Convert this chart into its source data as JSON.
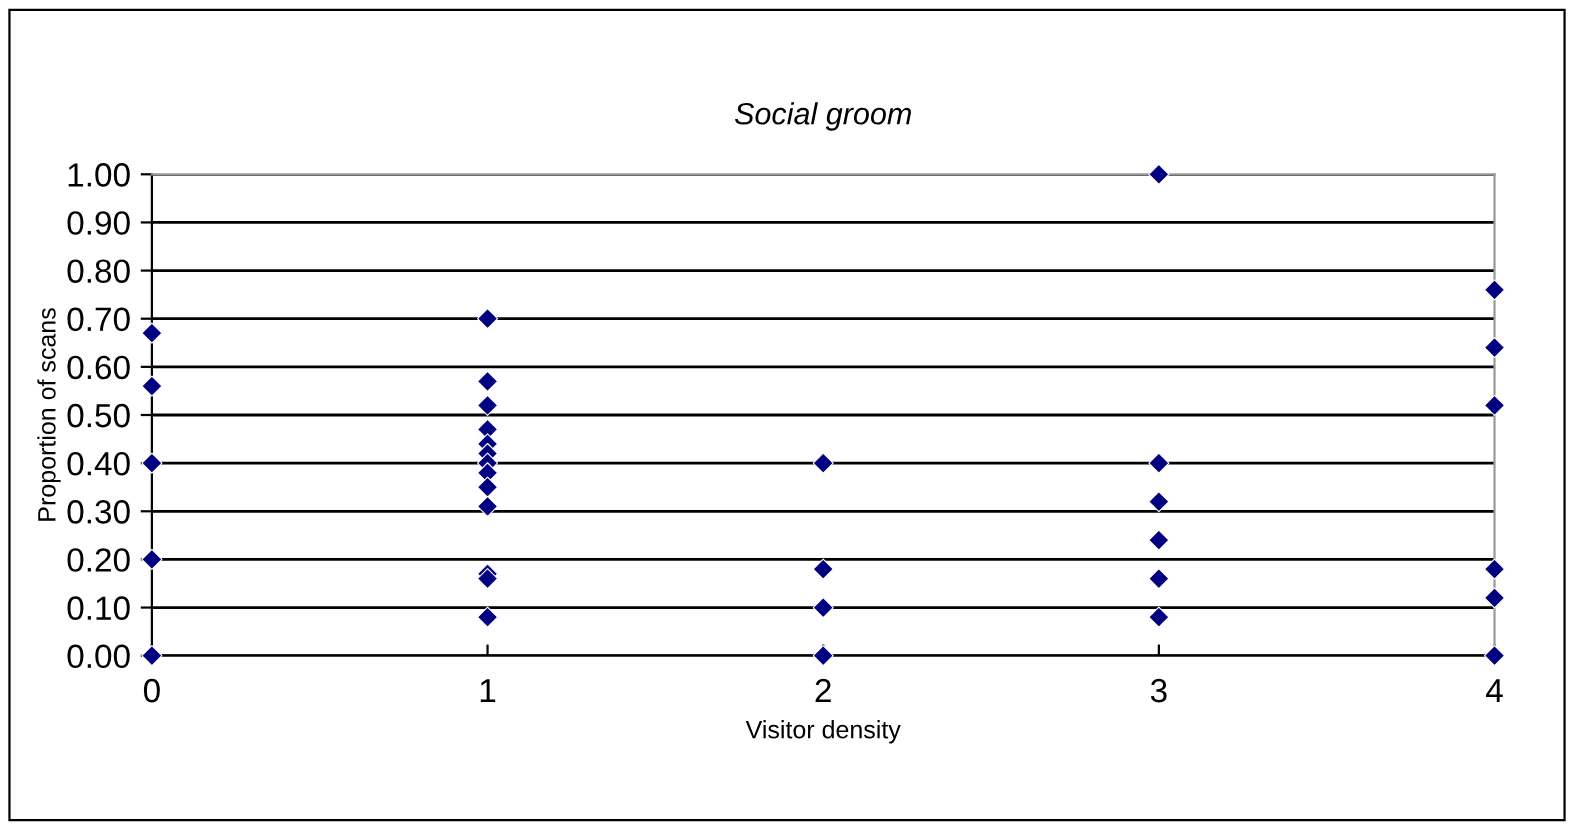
{
  "chart_data": {
    "type": "scatter",
    "title": "Social groom",
    "xlabel": "Visitor density",
    "ylabel": "Proportion of scans",
    "x": [
      0,
      0,
      0,
      0,
      0,
      1,
      1,
      1,
      1,
      1,
      1,
      1,
      1,
      1,
      1,
      1,
      1,
      1,
      2,
      2,
      2,
      2,
      3,
      3,
      3,
      3,
      3,
      3,
      4,
      4,
      4,
      4,
      4,
      4
    ],
    "values": [
      0.67,
      0.56,
      0.4,
      0.2,
      0.0,
      0.7,
      0.57,
      0.52,
      0.47,
      0.44,
      0.42,
      0.4,
      0.38,
      0.35,
      0.31,
      0.17,
      0.16,
      0.08,
      0.4,
      0.18,
      0.1,
      0.0,
      1.0,
      0.4,
      0.32,
      0.24,
      0.16,
      0.08,
      0.76,
      0.64,
      0.52,
      0.18,
      0.12,
      0.0
    ],
    "color": "#000080",
    "marker": "diamond",
    "grid": "y",
    "xlim": [
      0,
      4
    ],
    "xticks": [
      0,
      1,
      2,
      3,
      4
    ],
    "ylim": [
      0,
      1
    ],
    "yticks": [
      {
        "value": 0,
        "label": "0.00"
      },
      {
        "value": 0.1,
        "label": "0.10"
      },
      {
        "value": 0.2,
        "label": "0.20"
      },
      {
        "value": 0.3,
        "label": "0.30"
      },
      {
        "value": 0.4,
        "label": "0.40"
      },
      {
        "value": 0.5,
        "label": "0.50"
      },
      {
        "value": 0.6,
        "label": "0.60"
      },
      {
        "value": 0.7,
        "label": "0.70"
      },
      {
        "value": 0.8,
        "label": "0.80"
      },
      {
        "value": 0.9,
        "label": "0.90"
      },
      {
        "value": 1,
        "label": "1.00"
      }
    ]
  }
}
